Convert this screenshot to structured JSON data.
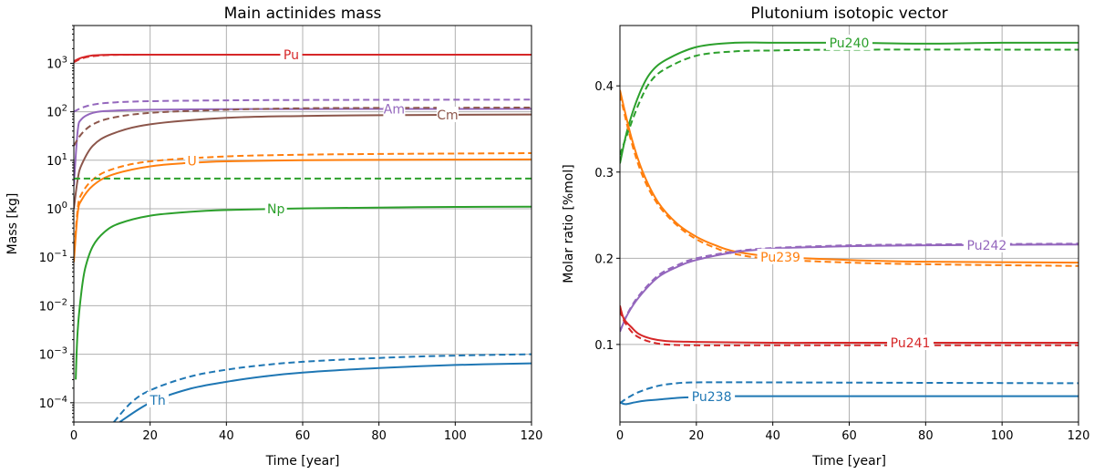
{
  "colors": {
    "Pu": "#d62728",
    "Am": "#9467bd",
    "Cm": "#8c564b",
    "U": "#ff7f0e",
    "green": "#2ca02c",
    "blue": "#1f77b4"
  },
  "chart_data": [
    {
      "type": "line",
      "title": "Main actinides mass",
      "xlabel": "Time [year]",
      "ylabel": "Mass [kg]",
      "xlim": [
        0,
        120
      ],
      "ylim": [
        4e-05,
        6000
      ],
      "yscale": "log",
      "grid": true,
      "xticks": [
        0,
        20,
        40,
        60,
        80,
        100,
        120
      ],
      "xtick_labels": [
        "0",
        "20",
        "40",
        "60",
        "80",
        "100",
        "120"
      ],
      "yticks": [
        0.0001,
        0.001,
        0.01,
        0.1,
        1,
        10,
        100,
        1000
      ],
      "ytick_labels": [
        {
          "base": "10",
          "exp": "−4"
        },
        {
          "base": "10",
          "exp": "−3"
        },
        {
          "base": "10",
          "exp": "−2"
        },
        {
          "base": "10",
          "exp": "−1"
        },
        {
          "base": "10",
          "exp": "0"
        },
        {
          "base": "10",
          "exp": "1"
        },
        {
          "base": "10",
          "exp": "2"
        },
        {
          "base": "10",
          "exp": "3"
        }
      ],
      "series": [
        {
          "name": "Pu",
          "color": "#d62728",
          "style": "solid",
          "label_x": 57,
          "x": [
            0,
            2,
            5,
            10,
            20,
            40,
            120
          ],
          "y": [
            1100,
            1300,
            1450,
            1500,
            1500,
            1500,
            1500
          ]
        },
        {
          "color": "#d62728",
          "style": "dashed",
          "x": [
            0,
            2,
            5,
            10,
            20,
            40,
            120
          ],
          "y": [
            1050,
            1250,
            1400,
            1480,
            1500,
            1500,
            1500
          ]
        },
        {
          "name": "Am",
          "color": "#9467bd",
          "style": "solid",
          "label_x": 84,
          "x": [
            0,
            1,
            2,
            5,
            10,
            20,
            40,
            60,
            120
          ],
          "y": [
            3,
            40,
            70,
            95,
            105,
            110,
            113,
            114,
            115
          ]
        },
        {
          "color": "#9467bd",
          "style": "dashed",
          "x": [
            0,
            2,
            5,
            10,
            20,
            40,
            60,
            80,
            120
          ],
          "y": [
            100,
            120,
            140,
            155,
            165,
            172,
            175,
            176,
            178
          ]
        },
        {
          "name": "Cm",
          "color": "#8c564b",
          "style": "solid",
          "label_x": 98,
          "x": [
            0,
            1,
            2,
            5,
            10,
            20,
            40,
            60,
            80,
            120
          ],
          "y": [
            1,
            4,
            8,
            20,
            35,
            55,
            75,
            82,
            85,
            88
          ]
        },
        {
          "color": "#8c564b",
          "style": "dashed",
          "x": [
            0,
            2,
            5,
            10,
            20,
            40,
            60,
            80,
            120
          ],
          "y": [
            20,
            35,
            55,
            75,
            95,
            110,
            118,
            120,
            122
          ]
        },
        {
          "name": "U",
          "color": "#ff7f0e",
          "style": "solid",
          "label_x": 31,
          "x": [
            0,
            1,
            2,
            5,
            10,
            20,
            30,
            40,
            60,
            80,
            120
          ],
          "y": [
            0.08,
            0.8,
            1.5,
            3,
            5,
            7.5,
            8.8,
            9.5,
            10,
            10.2,
            10.4
          ]
        },
        {
          "color": "#ff7f0e",
          "style": "dashed",
          "x": [
            0,
            1,
            2,
            5,
            10,
            20,
            40,
            60,
            80,
            120
          ],
          "y": [
            0.1,
            1,
            2,
            4,
            6.5,
            9.5,
            12,
            13,
            13.5,
            14
          ]
        },
        {
          "color": "#2ca02c",
          "style": "dashed",
          "x": [
            0,
            120
          ],
          "y": [
            4.2,
            4.2
          ]
        },
        {
          "name": "Np",
          "color": "#2ca02c",
          "style": "solid",
          "label_x": 53,
          "x": [
            0.5,
            1,
            2,
            3,
            5,
            8,
            12,
            20,
            30,
            40,
            60,
            80,
            100,
            120
          ],
          "y": [
            0.0003,
            0.003,
            0.02,
            0.06,
            0.17,
            0.33,
            0.5,
            0.72,
            0.86,
            0.94,
            1.02,
            1.06,
            1.09,
            1.1
          ]
        },
        {
          "name": "Th",
          "color": "#1f77b4",
          "style": "solid",
          "label_x": 22,
          "x": [
            12,
            20,
            30,
            40,
            50,
            60,
            80,
            100,
            120
          ],
          "y": [
            4e-05,
            0.0001,
            0.00019,
            0.00027,
            0.00035,
            0.00042,
            0.00052,
            0.0006,
            0.00065
          ]
        },
        {
          "color": "#1f77b4",
          "style": "dashed",
          "x": [
            10.5,
            15,
            20,
            30,
            40,
            50,
            60,
            80,
            100,
            120
          ],
          "y": [
            4e-05,
            0.0001,
            0.00018,
            0.00034,
            0.00048,
            0.0006,
            0.0007,
            0.00084,
            0.00094,
            0.001
          ]
        }
      ]
    },
    {
      "type": "line",
      "title": "Plutonium isotopic vector",
      "xlabel": "Time [year]",
      "ylabel": "Molar ratio [%mol]",
      "xlim": [
        0,
        120
      ],
      "ylim": [
        0.01,
        0.47
      ],
      "yscale": "linear",
      "grid": true,
      "xticks": [
        0,
        20,
        40,
        60,
        80,
        100,
        120
      ],
      "xtick_labels": [
        "0",
        "20",
        "40",
        "60",
        "80",
        "100",
        "120"
      ],
      "yticks": [
        0.1,
        0.2,
        0.3,
        0.4
      ],
      "ytick_labels": [
        "0.1",
        "0.2",
        "0.3",
        "0.4"
      ],
      "series": [
        {
          "name": "Pu240",
          "color": "#2ca02c",
          "style": "solid",
          "label_x": 60,
          "x": [
            0,
            2,
            5,
            8,
            12,
            20,
            30,
            40,
            60,
            80,
            100,
            120
          ],
          "y": [
            0.31,
            0.35,
            0.39,
            0.415,
            0.43,
            0.445,
            0.45,
            0.45,
            0.45,
            0.449,
            0.45,
            0.45
          ]
        },
        {
          "color": "#2ca02c",
          "style": "dashed",
          "x": [
            0,
            2,
            5,
            8,
            12,
            20,
            30,
            40,
            60,
            120
          ],
          "y": [
            0.32,
            0.345,
            0.38,
            0.405,
            0.42,
            0.435,
            0.44,
            0.441,
            0.442,
            0.442
          ]
        },
        {
          "name": "Pu239",
          "color": "#ff7f0e",
          "style": "solid",
          "label_x": 42,
          "x": [
            0,
            3,
            6,
            10,
            15,
            20,
            25,
            30,
            40,
            60,
            80,
            120
          ],
          "y": [
            0.395,
            0.34,
            0.3,
            0.265,
            0.24,
            0.225,
            0.215,
            0.208,
            0.202,
            0.198,
            0.196,
            0.195
          ]
        },
        {
          "color": "#ff7f0e",
          "style": "dashed",
          "x": [
            0,
            3,
            6,
            10,
            15,
            20,
            25,
            30,
            40,
            60,
            80,
            120
          ],
          "y": [
            0.39,
            0.335,
            0.295,
            0.262,
            0.238,
            0.222,
            0.212,
            0.205,
            0.199,
            0.195,
            0.193,
            0.191
          ]
        },
        {
          "name": "Pu242",
          "color": "#9467bd",
          "style": "solid",
          "label_x": 96,
          "x": [
            0,
            2,
            5,
            10,
            15,
            20,
            30,
            40,
            60,
            80,
            120
          ],
          "y": [
            0.115,
            0.135,
            0.155,
            0.178,
            0.19,
            0.198,
            0.207,
            0.211,
            0.214,
            0.215,
            0.216
          ]
        },
        {
          "color": "#9467bd",
          "style": "dashed",
          "x": [
            0,
            2,
            5,
            10,
            15,
            20,
            30,
            40,
            60,
            80,
            120
          ],
          "y": [
            0.115,
            0.136,
            0.157,
            0.18,
            0.192,
            0.2,
            0.208,
            0.212,
            0.215,
            0.216,
            0.217
          ]
        },
        {
          "name": "Pu241",
          "color": "#d62728",
          "style": "solid",
          "label_x": 76,
          "x": [
            0,
            1,
            3,
            5,
            8,
            12,
            20,
            40,
            60,
            120
          ],
          "y": [
            0.145,
            0.13,
            0.12,
            0.112,
            0.107,
            0.104,
            0.103,
            0.102,
            0.102,
            0.102
          ]
        },
        {
          "color": "#d62728",
          "style": "dashed",
          "x": [
            0,
            1,
            3,
            5,
            8,
            12,
            20,
            40,
            120
          ],
          "y": [
            0.14,
            0.128,
            0.115,
            0.108,
            0.103,
            0.1,
            0.099,
            0.099,
            0.099
          ]
        },
        {
          "color": "#1f77b4",
          "style": "dashed",
          "x": [
            0,
            2,
            5,
            10,
            15,
            20,
            40,
            120
          ],
          "y": [
            0.032,
            0.038,
            0.045,
            0.052,
            0.055,
            0.056,
            0.056,
            0.055
          ]
        },
        {
          "name": "Pu238",
          "color": "#1f77b4",
          "style": "solid",
          "label_x": 24,
          "x": [
            0,
            1,
            2,
            4,
            7,
            10,
            15,
            20,
            30,
            60,
            120
          ],
          "y": [
            0.033,
            0.031,
            0.031,
            0.033,
            0.035,
            0.036,
            0.038,
            0.039,
            0.04,
            0.04,
            0.04
          ]
        }
      ]
    }
  ]
}
